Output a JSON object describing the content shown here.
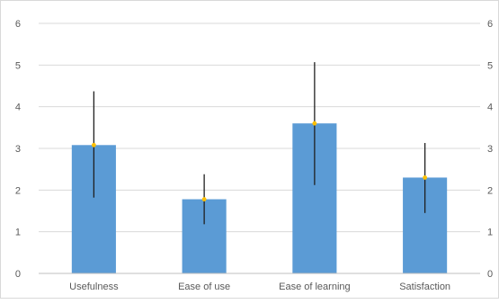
{
  "chart_data": {
    "type": "bar",
    "categories": [
      "Usefulness",
      "Ease of use",
      "Ease of learning",
      "Satisfaction"
    ],
    "values": [
      3.08,
      1.78,
      3.6,
      2.3
    ],
    "error_low": [
      1.82,
      1.18,
      2.12,
      1.45
    ],
    "error_high": [
      4.37,
      2.38,
      5.07,
      3.13
    ],
    "ylim": [
      0,
      6
    ],
    "yticks": [
      "0",
      "1",
      "2",
      "3",
      "4",
      "5",
      "6"
    ],
    "secondary_yticks": [
      "0",
      "1",
      "2",
      "3",
      "4",
      "5",
      "6"
    ],
    "grid": true,
    "legend": "none",
    "title": "",
    "xlabel": "",
    "ylabel": "",
    "colors": {
      "bar": "#5b9bd5",
      "error_bar": "#1f1f1f",
      "mean_marker": "#ffc000",
      "grid": "#d9d9d9",
      "axis": "#bfbfbf",
      "text": "#595959"
    }
  }
}
